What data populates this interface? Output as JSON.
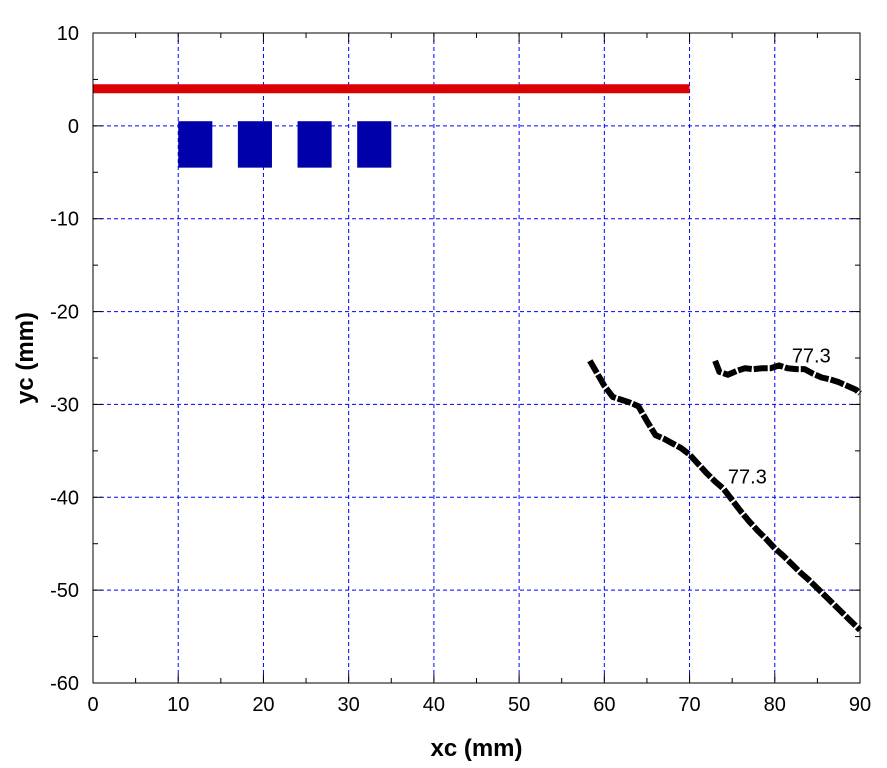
{
  "chart_data": {
    "type": "line",
    "xlabel": "xc (mm)",
    "ylabel": "yc (mm)",
    "xlim": [
      0,
      90
    ],
    "ylim": [
      -60,
      10
    ],
    "x_ticks": [
      0,
      10,
      20,
      30,
      40,
      50,
      60,
      70,
      80,
      90
    ],
    "y_ticks": [
      10,
      0,
      -10,
      -20,
      -30,
      -40,
      -50,
      -60
    ],
    "x_ticks_minor_step": 5,
    "y_ticks_minor_step": 5,
    "grid": true,
    "colors": {
      "grid": "#0000ff",
      "strip": "#dd0000",
      "blocks": "#0000aa",
      "contour": "#000000"
    },
    "strip": {
      "x": [
        0,
        70
      ],
      "y": 4
    },
    "blocks": [
      {
        "x": [
          10,
          14
        ],
        "y": [
          -4.5,
          0.5
        ]
      },
      {
        "x": [
          17,
          21
        ],
        "y": [
          -4.5,
          0.5
        ]
      },
      {
        "x": [
          24,
          28
        ],
        "y": [
          -4.5,
          0.5
        ]
      },
      {
        "x": [
          31,
          35
        ],
        "y": [
          -4.5,
          0.5
        ]
      }
    ],
    "series": [
      {
        "x": [
          58.3,
          59,
          60,
          61,
          62,
          63,
          64,
          65,
          66,
          67,
          68,
          69,
          70,
          71,
          72,
          73,
          74,
          75,
          76,
          77,
          78,
          79,
          80,
          81,
          82,
          83,
          84,
          85,
          86,
          87,
          88,
          89,
          90
        ],
        "y": [
          -25.3,
          -26.4,
          -28,
          -29.2,
          -29.5,
          -29.8,
          -30.2,
          -31.8,
          -33.3,
          -33.7,
          -34.2,
          -34.7,
          -35.4,
          -36.4,
          -37.4,
          -38.3,
          -39.1,
          -40.3,
          -41.5,
          -42.6,
          -43.6,
          -44.5,
          -45.5,
          -46.3,
          -47.2,
          -48.1,
          -48.9,
          -49.8,
          -50.7,
          -51.6,
          -52.5,
          -53.4,
          -54.3
        ],
        "label": {
          "text": "77.3",
          "x": 74.5,
          "y": -38.5
        }
      },
      {
        "x": [
          73,
          73.5,
          74.5,
          75.5,
          76.5,
          77.5,
          78.5,
          79.5,
          80.5,
          81.5,
          82.5,
          83.5,
          84.5,
          85.5,
          86.5,
          87.5,
          88.5,
          89.5,
          90
        ],
        "y": [
          -25.3,
          -26.5,
          -26.8,
          -26.4,
          -26.1,
          -26.2,
          -26.1,
          -26.1,
          -25.8,
          -26.1,
          -26.2,
          -26.2,
          -26.7,
          -27.1,
          -27.3,
          -27.6,
          -28,
          -28.4,
          -28.8
        ],
        "label": {
          "text": "77.3",
          "x": 82,
          "y": -25.5
        }
      }
    ]
  }
}
